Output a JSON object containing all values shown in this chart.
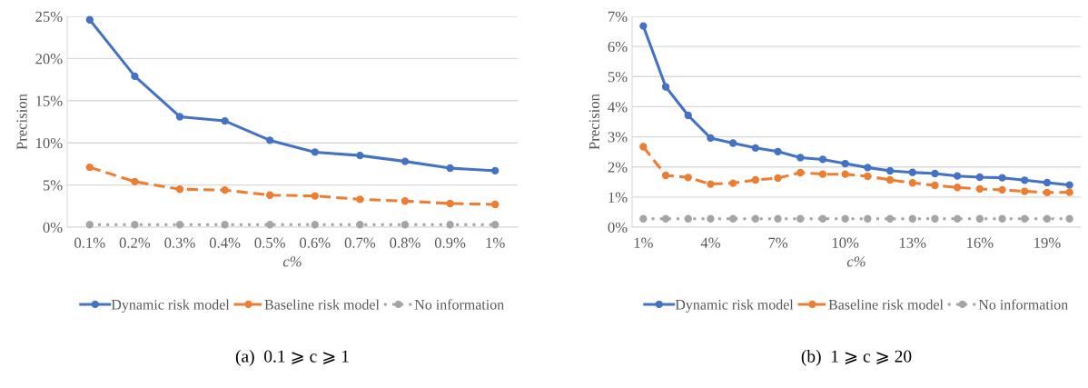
{
  "chart_data": [
    {
      "type": "line",
      "title": "(a)  0.1 ⩾ c ⩾ 1",
      "xlabel": "c%",
      "ylabel": "Precision",
      "categories": [
        "0.1%",
        "0.2%",
        "0.3%",
        "0.4%",
        "0.5%",
        "0.6%",
        "0.7%",
        "0.8%",
        "0.9%",
        "1%"
      ],
      "series": [
        {
          "name": "Dynamic risk model",
          "color": "#4472c4",
          "line_style": "solid",
          "values": [
            24.6,
            17.9,
            13.1,
            12.6,
            10.3,
            8.9,
            8.5,
            7.8,
            7.0,
            6.7
          ]
        },
        {
          "name": "Baseline risk model",
          "color": "#ed7d31",
          "line_style": "dashed",
          "values": [
            7.1,
            5.4,
            4.5,
            4.4,
            3.8,
            3.7,
            3.3,
            3.1,
            2.8,
            2.7
          ]
        },
        {
          "name": "No information",
          "color": "#a5a5a5",
          "line_style": "dotted",
          "values": [
            0.3,
            0.3,
            0.3,
            0.3,
            0.3,
            0.3,
            0.3,
            0.3,
            0.3,
            0.3
          ]
        }
      ],
      "ylim": [
        0,
        25
      ],
      "yticks": [
        {
          "value": 0,
          "label": "0%"
        },
        {
          "value": 5,
          "label": "5%"
        },
        {
          "value": 10,
          "label": "10%"
        },
        {
          "value": 15,
          "label": "15%"
        },
        {
          "value": 20,
          "label": "20%"
        },
        {
          "value": 25,
          "label": "25%"
        }
      ],
      "grid": "y",
      "legend": "bottom",
      "marker": "circle"
    },
    {
      "type": "line",
      "title": "(b)  1 ⩾ c ⩾ 20",
      "xlabel": "c%",
      "ylabel": "Precision",
      "categories": [
        "1%",
        null,
        null,
        "4%",
        null,
        null,
        "7%",
        null,
        null,
        "10%",
        null,
        null,
        "13%",
        null,
        null,
        "16%",
        null,
        null,
        "19%",
        null
      ],
      "series": [
        {
          "name": "Dynamic risk model",
          "color": "#4472c4",
          "line_style": "solid",
          "values": [
            6.68,
            4.66,
            3.71,
            2.96,
            2.79,
            2.63,
            2.51,
            2.31,
            2.25,
            2.11,
            1.98,
            1.87,
            1.82,
            1.78,
            1.7,
            1.66,
            1.64,
            1.56,
            1.48,
            1.4
          ]
        },
        {
          "name": "Baseline risk model",
          "color": "#ed7d31",
          "line_style": "dashed",
          "values": [
            2.67,
            1.72,
            1.65,
            1.43,
            1.46,
            1.57,
            1.63,
            1.81,
            1.76,
            1.76,
            1.69,
            1.57,
            1.47,
            1.39,
            1.32,
            1.27,
            1.24,
            1.19,
            1.15,
            1.16
          ]
        },
        {
          "name": "No information",
          "color": "#a5a5a5",
          "line_style": "dotted",
          "values": [
            0.28,
            0.28,
            0.28,
            0.28,
            0.28,
            0.28,
            0.28,
            0.28,
            0.28,
            0.28,
            0.28,
            0.28,
            0.28,
            0.28,
            0.28,
            0.28,
            0.28,
            0.28,
            0.28,
            0.28
          ]
        }
      ],
      "ylim": [
        0,
        7
      ],
      "yticks": [
        {
          "value": 0,
          "label": "0%"
        },
        {
          "value": 1,
          "label": "1%"
        },
        {
          "value": 2,
          "label": "2%"
        },
        {
          "value": 3,
          "label": "3%"
        },
        {
          "value": 4,
          "label": "4%"
        },
        {
          "value": 5,
          "label": "5%"
        },
        {
          "value": 6,
          "label": "6%"
        },
        {
          "value": 7,
          "label": "7%"
        }
      ],
      "grid": "y",
      "legend": "bottom",
      "marker": "circle"
    }
  ]
}
